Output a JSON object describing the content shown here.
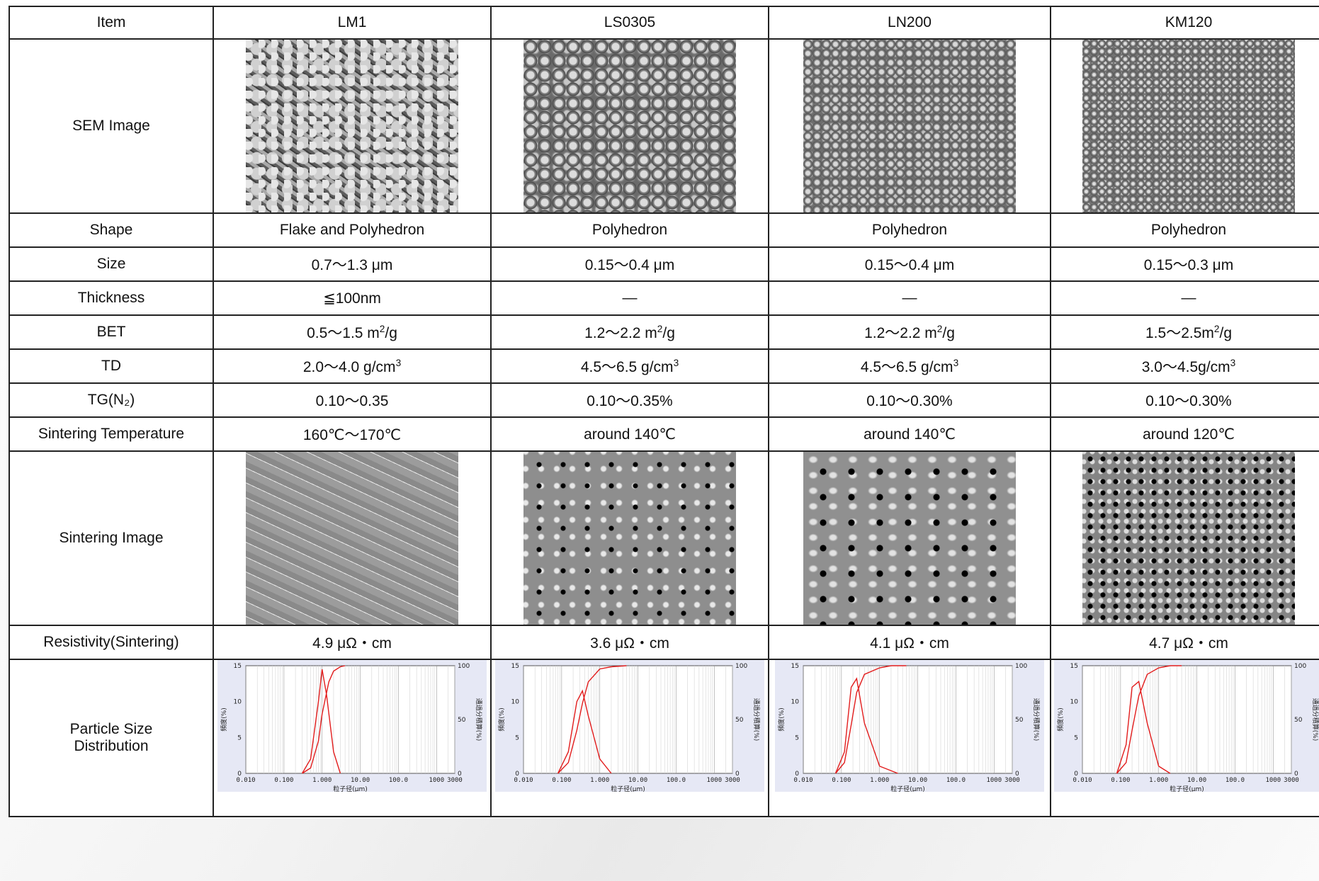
{
  "header": {
    "item": "Item",
    "products": [
      "LM1",
      "LS0305",
      "LN200",
      "KM120"
    ]
  },
  "rows": {
    "sem_image": "SEM Image",
    "shape": {
      "label": "Shape",
      "values": [
        "Flake and Polyhedron",
        "Polyhedron",
        "Polyhedron",
        "Polyhedron"
      ]
    },
    "size": {
      "label": "Size",
      "values": [
        "0.7〜1.3 μm",
        "0.15〜0.4 μm",
        "0.15〜0.4 μm",
        "0.15〜0.3 μm"
      ]
    },
    "thickness": {
      "label": "Thickness",
      "values": [
        "≦100nm",
        "—",
        "—",
        "—"
      ]
    },
    "bet": {
      "label": "BET",
      "values": [
        "0.5〜1.5 m",
        "1.2〜2.2 m",
        "1.2〜2.2 m",
        "1.5〜2.5m"
      ],
      "unit": "/g",
      "sup": "2"
    },
    "td": {
      "label": "TD",
      "values": [
        "2.0〜4.0 g/cm",
        "4.5〜6.5 g/cm",
        "4.5〜6.5 g/cm",
        "3.0〜4.5g/cm"
      ],
      "sup": "3"
    },
    "tg": {
      "label": "TG(N₂)",
      "values": [
        "0.10〜0.35",
        "0.10〜0.35%",
        "0.10〜0.30%",
        "0.10〜0.30%"
      ]
    },
    "sintering_temp": {
      "label": "Sintering Temperature",
      "values": [
        "160℃〜170℃",
        "around 140℃",
        "around 140℃",
        "around 120℃"
      ]
    },
    "sintering_image": "Sintering Image",
    "resistivity": {
      "label": "Resistivity(Sintering)",
      "values": [
        "4.9 μΩ・cm",
        "3.6 μΩ・cm",
        "4.1 μΩ・cm",
        "4.7 μΩ・cm"
      ]
    },
    "psd": {
      "label_1": "Particle Size",
      "label_2": "Distribution"
    }
  },
  "psd_chart": {
    "left_ticks": [
      "15",
      "10",
      "5",
      "0"
    ],
    "right_ticks": [
      "100",
      "50",
      "0"
    ],
    "x_ticks": [
      "0.010",
      "0.100",
      "1.000",
      "10.00",
      "100.0",
      "1000",
      "3000"
    ],
    "xlabel": "粒子径(μm)",
    "ylabel_left": "頻度(%)",
    "ylabel_right": "通過分積算(%)"
  },
  "chart_data": [
    {
      "type": "line",
      "x_scale": "log",
      "xlim": [
        0.01,
        3000
      ],
      "ylim": [
        0,
        15
      ],
      "series": [
        {
          "x": [
            0.3,
            0.5,
            0.8,
            1.0,
            1.3,
            2.0,
            3.0
          ],
          "y": [
            0,
            2,
            10,
            14.5,
            11,
            3,
            0
          ]
        },
        {
          "x": [
            0.3,
            0.5,
            0.8,
            1.0,
            1.5,
            2.0,
            3.0,
            4.0
          ],
          "y": [
            0,
            5,
            30,
            55,
            85,
            95,
            99,
            100
          ],
          "axis": "right"
        }
      ]
    },
    {
      "type": "line",
      "x_scale": "log",
      "xlim": [
        0.01,
        3000
      ],
      "ylim": [
        0,
        15
      ],
      "series": [
        {
          "x": [
            0.08,
            0.15,
            0.25,
            0.35,
            0.5,
            1.0,
            2.0
          ],
          "y": [
            0,
            3,
            10,
            11.5,
            8,
            2,
            0
          ]
        },
        {
          "x": [
            0.08,
            0.15,
            0.25,
            0.35,
            0.5,
            1.0,
            2.0,
            5.0
          ],
          "y": [
            0,
            10,
            40,
            65,
            85,
            97,
            99,
            100
          ],
          "axis": "right"
        }
      ]
    },
    {
      "type": "line",
      "x_scale": "log",
      "xlim": [
        0.01,
        3000
      ],
      "ylim": [
        0,
        15
      ],
      "series": [
        {
          "x": [
            0.07,
            0.12,
            0.18,
            0.25,
            0.4,
            1.0,
            3.0
          ],
          "y": [
            0,
            3,
            12,
            13.2,
            7,
            1,
            0
          ]
        },
        {
          "x": [
            0.07,
            0.12,
            0.18,
            0.25,
            0.4,
            1.0,
            2.0,
            5.0
          ],
          "y": [
            0,
            10,
            45,
            75,
            92,
            98,
            100,
            100
          ],
          "axis": "right"
        }
      ]
    },
    {
      "type": "line",
      "x_scale": "log",
      "xlim": [
        0.01,
        3000
      ],
      "ylim": [
        0,
        15
      ],
      "series": [
        {
          "x": [
            0.08,
            0.14,
            0.2,
            0.3,
            0.5,
            1.0,
            2.0
          ],
          "y": [
            0,
            4,
            12,
            12.8,
            7,
            1,
            0
          ]
        },
        {
          "x": [
            0.08,
            0.14,
            0.2,
            0.3,
            0.5,
            1.0,
            2.0,
            4.0
          ],
          "y": [
            0,
            10,
            40,
            72,
            92,
            98,
            100,
            100
          ],
          "axis": "right"
        }
      ]
    }
  ]
}
